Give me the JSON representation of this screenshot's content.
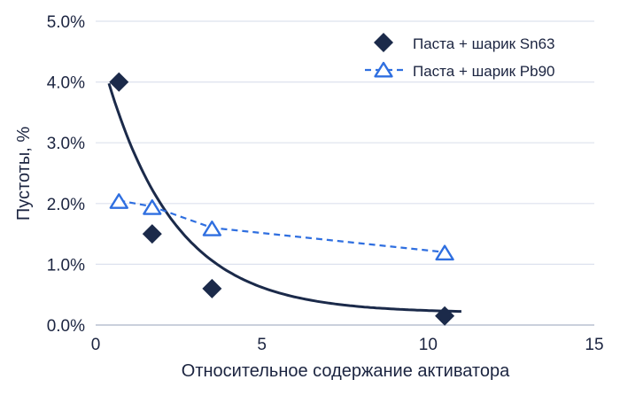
{
  "chart_data": {
    "type": "scatter",
    "xlabel": "Относительное содержание активатора",
    "ylabel": "Пустоты, %",
    "xlim": [
      0,
      15
    ],
    "ylim": [
      0,
      5
    ],
    "x_ticks": [
      0,
      5,
      10,
      15
    ],
    "x_tick_labels": [
      "0",
      "5",
      "10",
      "15"
    ],
    "y_ticks": [
      0,
      1,
      2,
      3,
      4,
      5
    ],
    "y_tick_labels": [
      "0.0%",
      "1.0%",
      "2.0%",
      "3.0%",
      "4.0%",
      "5.0%"
    ],
    "grid": "horizontal",
    "legend_position": "top-right",
    "series": [
      {
        "name": "Паста + шарик Sn63",
        "marker": "diamond",
        "color": "#1b2a4a",
        "points": [
          {
            "x": 0.7,
            "y": 4.0
          },
          {
            "x": 1.7,
            "y": 1.5
          },
          {
            "x": 3.5,
            "y": 0.6
          },
          {
            "x": 10.5,
            "y": 0.15
          }
        ]
      },
      {
        "name": "Паста + шарик Pb90",
        "marker": "triangle-open",
        "line": "dashed",
        "color": "#2f6fe0",
        "points": [
          {
            "x": 0.7,
            "y": 2.05
          },
          {
            "x": 1.7,
            "y": 1.95
          },
          {
            "x": 3.5,
            "y": 1.6
          },
          {
            "x": 10.5,
            "y": 1.2
          }
        ]
      }
    ],
    "trendline": {
      "series": "Паста + шарик Sn63",
      "type": "exponential",
      "color": "#1b2a4a",
      "x_range": [
        0.4,
        11.0
      ],
      "a": 0.2,
      "b": 4.57,
      "k": 0.477
    }
  }
}
